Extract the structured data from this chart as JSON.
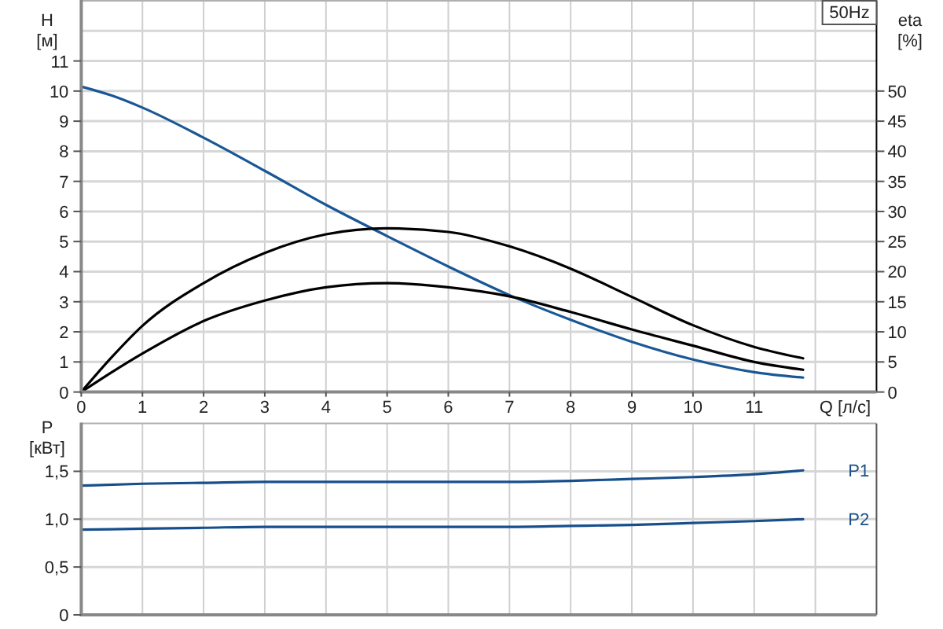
{
  "chart_data": [
    {
      "type": "line",
      "title": "50Hz",
      "xlabel": "Q [л/с]",
      "ylabel": "H [м]",
      "y2label": "eta [%]",
      "x": [
        0,
        0.5,
        1,
        2,
        3,
        4,
        5,
        6,
        7,
        8,
        9,
        10,
        11,
        11.8
      ],
      "series": [
        {
          "color": "#1a5796",
          "values": [
            10.15,
            9.85,
            9.45,
            8.45,
            7.35,
            6.22,
            5.18,
            4.17,
            3.22,
            2.4,
            1.67,
            1.08,
            0.66,
            0.48
          ]
        },
        {
          "color": "#000000",
          "axis": "y2",
          "values": [
            0,
            5.8,
            11,
            18.1,
            23.1,
            26.2,
            27.2,
            26.6,
            24.2,
            20.5,
            15.8,
            11.1,
            7.5,
            5.6
          ]
        },
        {
          "color": "#000000",
          "axis": "y2",
          "values": [
            0,
            3.3,
            6.4,
            11.8,
            15.2,
            17.4,
            18.1,
            17.4,
            15.9,
            13.3,
            10.4,
            7.7,
            5.0,
            3.7
          ]
        }
      ],
      "xlim": [
        0,
        13
      ],
      "xticks": [
        0,
        1,
        2,
        3,
        4,
        5,
        6,
        7,
        8,
        9,
        10,
        11,
        {
          "value": 12,
          "label": null
        }
      ],
      "ylim": [
        0,
        13
      ],
      "yticks": [
        0,
        1,
        2,
        3,
        4,
        5,
        6,
        7,
        8,
        9,
        10,
        11,
        {
          "value": 12,
          "label": null
        }
      ],
      "y2lim": [
        0,
        65
      ],
      "y2ticks": [
        0,
        5,
        10,
        15,
        20,
        25,
        30,
        35,
        40,
        45,
        50
      ],
      "grid": true
    },
    {
      "type": "line",
      "ylabel": "P [кВт]",
      "x": [
        0,
        1,
        2,
        3,
        4,
        5,
        6,
        7,
        8,
        9,
        10,
        11,
        11.8
      ],
      "series": [
        {
          "name": "P1",
          "color": "#174f8c",
          "values": [
            1.35,
            1.37,
            1.38,
            1.39,
            1.39,
            1.39,
            1.39,
            1.39,
            1.4,
            1.42,
            1.44,
            1.47,
            1.51
          ]
        },
        {
          "name": "P2",
          "color": "#174f8c",
          "values": [
            0.89,
            0.9,
            0.91,
            0.92,
            0.92,
            0.92,
            0.92,
            0.92,
            0.93,
            0.94,
            0.96,
            0.98,
            1.0
          ]
        }
      ],
      "xlim": [
        0,
        13
      ],
      "xticks": [
        0,
        1,
        2,
        3,
        4,
        5,
        6,
        7,
        8,
        9,
        10,
        11,
        {
          "value": 12,
          "label": null
        }
      ],
      "ylim": [
        0,
        2
      ],
      "yticks": [
        0,
        {
          "value": 0.5,
          "label": "0,5"
        },
        {
          "value": 1,
          "label": "1,0"
        },
        {
          "value": 1.5,
          "label": "1,5"
        }
      ],
      "tick_labels": "y",
      "grid": true
    }
  ]
}
